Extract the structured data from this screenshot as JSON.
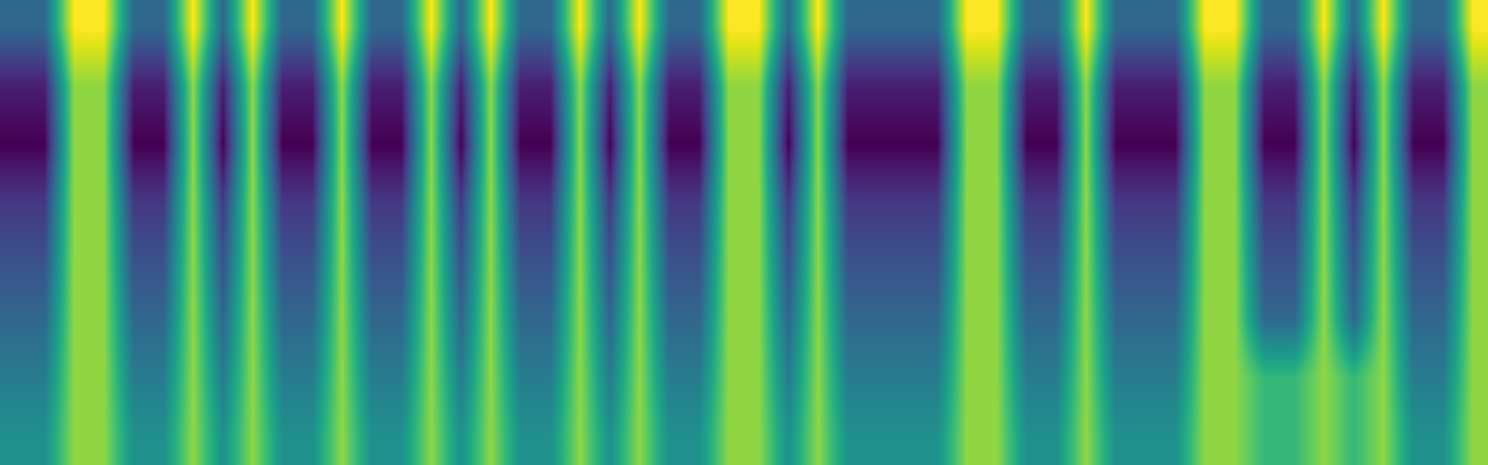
{
  "chart_data": {
    "type": "heatmap",
    "color": "viridis",
    "tick_labels": false,
    "cells": [
      [
        50,
        50,
        90,
        90,
        50,
        50,
        90,
        50,
        90,
        50,
        50,
        90,
        50,
        50,
        90,
        50,
        90,
        50,
        50,
        90,
        50,
        90,
        50,
        50,
        90,
        90,
        50,
        90,
        50,
        50,
        50,
        50,
        90,
        90,
        50,
        50,
        90,
        50,
        50,
        50,
        90,
        90,
        50,
        50,
        90,
        50,
        90,
        50,
        50,
        90
      ],
      [
        35,
        35,
        80,
        80,
        35,
        35,
        80,
        35,
        80,
        35,
        35,
        80,
        35,
        35,
        80,
        35,
        80,
        35,
        35,
        80,
        35,
        80,
        35,
        35,
        80,
        80,
        35,
        80,
        35,
        35,
        35,
        35,
        80,
        80,
        35,
        35,
        80,
        35,
        35,
        35,
        80,
        80,
        35,
        35,
        80,
        35,
        80,
        35,
        35,
        80
      ],
      [
        30,
        30,
        80,
        80,
        30,
        30,
        80,
        30,
        80,
        30,
        30,
        80,
        30,
        30,
        80,
        30,
        80,
        30,
        30,
        80,
        30,
        80,
        30,
        30,
        80,
        80,
        30,
        80,
        30,
        30,
        30,
        30,
        80,
        80,
        30,
        30,
        80,
        30,
        30,
        30,
        80,
        80,
        30,
        30,
        80,
        30,
        80,
        30,
        30,
        80
      ],
      [
        40,
        40,
        80,
        80,
        40,
        40,
        80,
        40,
        80,
        40,
        40,
        80,
        40,
        40,
        80,
        40,
        80,
        40,
        40,
        80,
        40,
        80,
        40,
        40,
        80,
        80,
        40,
        80,
        40,
        40,
        40,
        40,
        80,
        80,
        40,
        40,
        80,
        40,
        40,
        40,
        80,
        80,
        40,
        40,
        80,
        40,
        80,
        40,
        40,
        80
      ],
      [
        45,
        45,
        80,
        80,
        45,
        45,
        80,
        45,
        80,
        45,
        45,
        80,
        45,
        45,
        80,
        45,
        80,
        45,
        45,
        80,
        45,
        80,
        45,
        45,
        80,
        80,
        45,
        80,
        45,
        45,
        45,
        45,
        80,
        80,
        45,
        45,
        80,
        45,
        45,
        45,
        80,
        80,
        45,
        45,
        80,
        45,
        80,
        45,
        45,
        80
      ],
      [
        50,
        50,
        80,
        80,
        50,
        50,
        80,
        50,
        80,
        50,
        50,
        80,
        50,
        50,
        80,
        50,
        80,
        50,
        50,
        80,
        50,
        80,
        50,
        50,
        80,
        80,
        50,
        80,
        50,
        50,
        50,
        50,
        80,
        80,
        50,
        50,
        80,
        50,
        50,
        50,
        80,
        80,
        50,
        50,
        80,
        50,
        80,
        50,
        50,
        80
      ],
      [
        55,
        55,
        80,
        80,
        55,
        55,
        80,
        55,
        80,
        55,
        55,
        80,
        55,
        55,
        80,
        55,
        80,
        55,
        55,
        80,
        55,
        80,
        55,
        55,
        80,
        80,
        55,
        80,
        55,
        55,
        55,
        55,
        80,
        80,
        55,
        55,
        80,
        55,
        55,
        55,
        80,
        80,
        70,
        70,
        80,
        70,
        80,
        55,
        55,
        80
      ],
      [
        60,
        60,
        80,
        80,
        60,
        60,
        80,
        60,
        80,
        60,
        60,
        80,
        60,
        60,
        80,
        60,
        80,
        60,
        60,
        80,
        60,
        80,
        60,
        60,
        80,
        80,
        60,
        80,
        60,
        60,
        60,
        60,
        80,
        80,
        60,
        60,
        80,
        60,
        60,
        60,
        80,
        80,
        70,
        70,
        80,
        70,
        80,
        60,
        60,
        80
      ]
    ]
  }
}
